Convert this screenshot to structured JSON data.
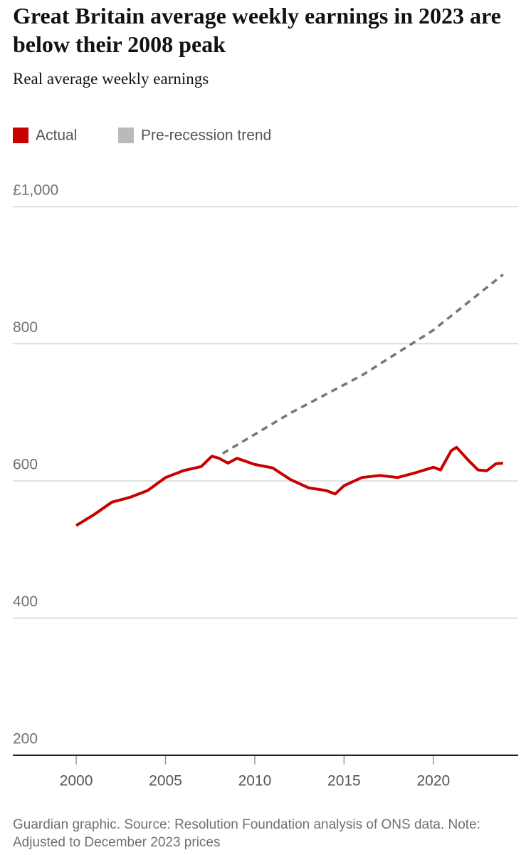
{
  "chart_data": {
    "type": "line",
    "title": "Great Britain average weekly earnings in 2023 are below their 2008 peak",
    "subtitle": "Real average weekly earnings",
    "footer": "Guardian graphic. Source: Resolution Foundation analysis of ONS data. Note: Adjusted to December 2023 prices",
    "series": [
      {
        "name": "Actual",
        "color": "#c70000",
        "x": [
          2000.0,
          2001.0,
          2002.0,
          2003.0,
          2004.0,
          2005.0,
          2006.0,
          2007.0,
          2007.6,
          2008.0,
          2008.5,
          2009.0,
          2010.0,
          2011.0,
          2012.0,
          2013.0,
          2014.0,
          2014.5,
          2015.0,
          2016.0,
          2017.0,
          2018.0,
          2019.0,
          2020.0,
          2020.4,
          2021.0,
          2021.3,
          2022.0,
          2022.5,
          2023.0,
          2023.5,
          2023.9
        ],
        "values": [
          535,
          551,
          569,
          576,
          586,
          605,
          615,
          621,
          636,
          633,
          626,
          633,
          624,
          619,
          602,
          590,
          586,
          581,
          593,
          605,
          608,
          605,
          612,
          620,
          616,
          644,
          649,
          629,
          616,
          615,
          625,
          626
        ]
      },
      {
        "name": "Pre-recession trend",
        "color": "#767676",
        "dashed": true,
        "x": [
          2008.2,
          2012.0,
          2016.0,
          2020.0,
          2023.9
        ],
        "values": [
          640,
          699,
          754,
          820,
          901
        ]
      }
    ],
    "xlim": [
      1996.45,
      2024.75
    ],
    "xticks": [
      2000,
      2005,
      2010,
      2015,
      2020
    ],
    "ylim": [
      200,
      1000
    ],
    "yticks": [
      200,
      400,
      600,
      800,
      {
        "value": 1000,
        "label": "£1,000"
      }
    ],
    "grid": true
  }
}
